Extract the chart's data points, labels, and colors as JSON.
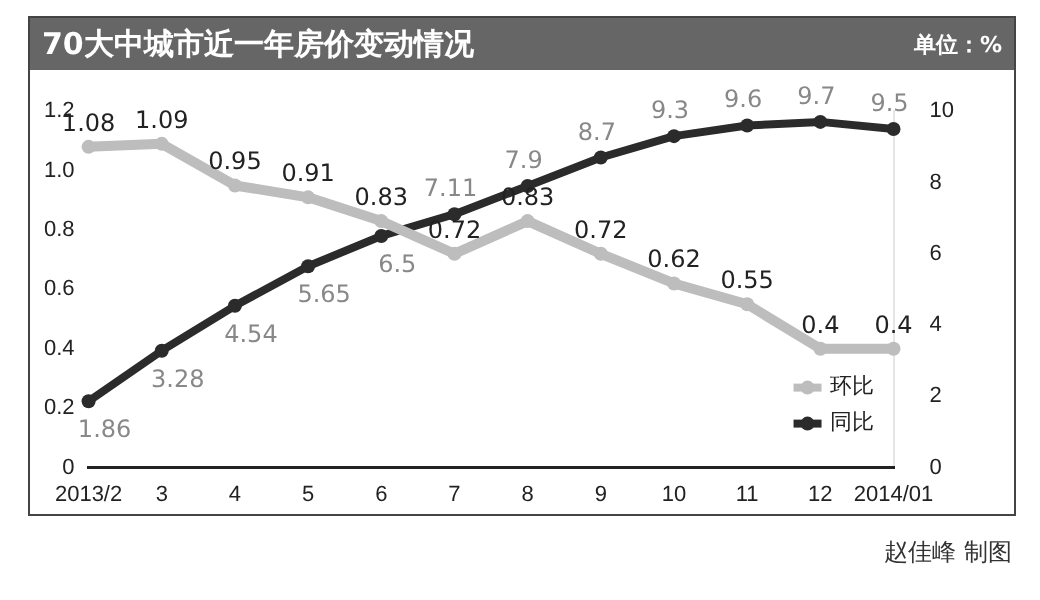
{
  "chart_data": {
    "type": "line",
    "title": "70大中城市近一年房价变动情况",
    "subtitle": "单位：%",
    "categories": [
      "2013/2",
      "3",
      "4",
      "5",
      "6",
      "7",
      "8",
      "9",
      "10",
      "11",
      "12",
      "2014/01"
    ],
    "series": [
      {
        "name": "环比",
        "color": "#bdbdbd",
        "values": [
          1.08,
          1.09,
          0.95,
          0.91,
          0.83,
          0.72,
          0.83,
          0.72,
          0.62,
          0.55,
          0.4,
          0.4
        ]
      },
      {
        "name": "同比",
        "color": "#2b2b2b",
        "axis": "y2",
        "values": [
          1.86,
          3.28,
          4.54,
          5.65,
          6.5,
          7.11,
          7.9,
          8.7,
          9.3,
          9.6,
          9.7,
          9.5
        ]
      }
    ],
    "ylim": [
      0,
      1.2
    ],
    "yticks": [
      0,
      0.2,
      0.4,
      0.6,
      0.8,
      {
        "value": 1.0,
        "label": "1.0"
      },
      1.2
    ],
    "y2lim": [
      0,
      10
    ],
    "y2ticks": [
      0,
      2,
      4,
      6,
      8,
      10
    ],
    "data_labels": true,
    "marker": "circle",
    "legend": "bottom right",
    "grid": false,
    "annotations": [
      "赵佳峰 制图"
    ]
  }
}
